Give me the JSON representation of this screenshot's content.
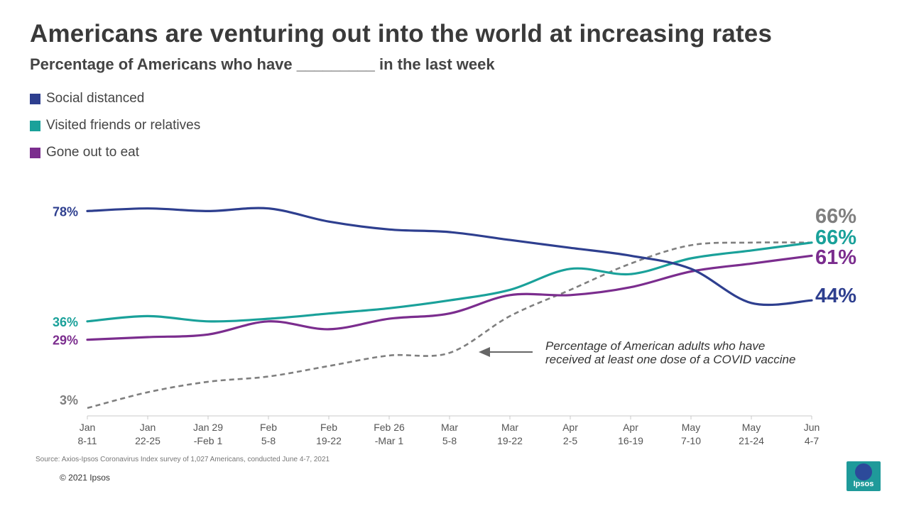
{
  "header": {
    "title": "Americans are venturing out into the world at increasing rates",
    "subtitle": "Percentage of Americans who have _________ in the last week"
  },
  "footer": {
    "source": "Source: Axios-Ipsos Coronavirus Index survey of 1,027 Americans, conducted June 4-7, 2021",
    "copyright": "© 2021 Ipsos",
    "logo_text": "Ipsos"
  },
  "colors": {
    "social": "#2e3f8f",
    "visited": "#1aa19a",
    "eat": "#7b2d8e",
    "vaccine": "#7f7f7f",
    "axis": "#c8c8c8",
    "tick_text": "#555555"
  },
  "chart_data": {
    "type": "line",
    "title": "Americans are venturing out into the world at increasing rates",
    "xlabel": "",
    "ylabel": "",
    "ylim": [
      0,
      100
    ],
    "grid": false,
    "legend_position": "top-left",
    "categories": [
      [
        "Jan",
        "8-11"
      ],
      [
        "Jan",
        "22-25"
      ],
      [
        "Jan 29",
        "-Feb 1"
      ],
      [
        "Feb",
        "5-8"
      ],
      [
        "Feb",
        "19-22"
      ],
      [
        "Feb 26",
        "-Mar 1"
      ],
      [
        "Mar",
        "5-8"
      ],
      [
        "Mar",
        "19-22"
      ],
      [
        "Apr",
        "2-5"
      ],
      [
        "Apr",
        "16-19"
      ],
      [
        "May",
        "7-10"
      ],
      [
        "May",
        "21-24"
      ],
      [
        "Jun",
        "4-7"
      ]
    ],
    "series": [
      {
        "key": "social",
        "name": "Social distanced",
        "values": [
          78,
          79,
          78,
          79,
          74,
          71,
          70,
          67,
          64,
          61,
          56,
          43,
          44
        ],
        "start_label": "78%",
        "end_label": "44%",
        "in_legend": true
      },
      {
        "key": "visited",
        "name": "Visited friends or relatives",
        "values": [
          36,
          38,
          36,
          37,
          39,
          41,
          44,
          48,
          56,
          54,
          60,
          63,
          66
        ],
        "start_label": "36%",
        "end_label": "66%",
        "in_legend": true
      },
      {
        "key": "eat",
        "name": "Gone out to eat",
        "values": [
          29,
          30,
          31,
          36,
          33,
          37,
          39,
          46,
          46,
          49,
          55,
          58,
          61
        ],
        "start_label": "29%",
        "end_label": "61%",
        "in_legend": true
      },
      {
        "key": "vaccine",
        "name": "Percentage of American adults who have received at least one dose of a COVID vaccine",
        "values": [
          3,
          9,
          13,
          15,
          19,
          23,
          24,
          38,
          48,
          58,
          65,
          66,
          66
        ],
        "start_label": "3%",
        "end_label": "66%",
        "dashed": true,
        "in_legend": false
      }
    ],
    "annotations": [
      {
        "lines": [
          "Percentage of American adults who have",
          "received at least one dose of a COVID vaccine"
        ],
        "points_to": "vaccine"
      }
    ]
  }
}
